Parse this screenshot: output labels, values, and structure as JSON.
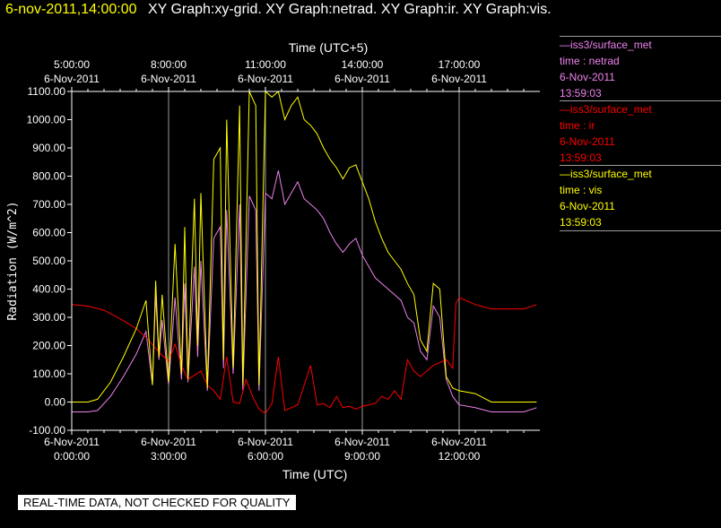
{
  "header": {
    "timestamp": "6-nov-2011,14:00:00",
    "titles": "XY Graph:xy-grid.  XY Graph:netrad.  XY Graph:ir.  XY Graph:vis."
  },
  "legend": [
    {
      "line1": "—iss3/surface_met",
      "line2": "time : netrad",
      "line3": "6-Nov-2011",
      "line4": "13:59:03",
      "color": "#ee82ee"
    },
    {
      "line1": "—iss3/surface_met",
      "line2": "time : ir",
      "line3": "6-Nov-2011",
      "line4": "13:59:03",
      "color": "#ff0000"
    },
    {
      "line1": "—iss3/surface_met",
      "line2": "time : vis",
      "line3": "6-Nov-2011",
      "line4": "13:59:03",
      "color": "#ffff00"
    }
  ],
  "disclaimer": "REAL-TIME DATA, NOT CHECKED FOR QUALITY",
  "chart_data": {
    "type": "line",
    "ylabel": "Radiation (W/m^2)",
    "xlabel": "Time (UTC)",
    "top_axis_label": "Time (UTC+5)",
    "ylim": [
      -100,
      1100
    ],
    "xlim": [
      0,
      14.5
    ],
    "grid": "vertical lines",
    "y_ticks": [
      -100,
      0,
      100,
      200,
      300,
      400,
      500,
      600,
      700,
      800,
      900,
      1000,
      1100
    ],
    "y_tick_labels": [
      "-100.00",
      "0.00",
      "100.00",
      "200.00",
      "300.00",
      "400.00",
      "500.00",
      "600.00",
      "700.00",
      "800.00",
      "900.00",
      "1000.00",
      "1100.00"
    ],
    "x_ticks": [
      0,
      3,
      6,
      9,
      12
    ],
    "x_tick_labels": [
      [
        "6-Nov-2011",
        "0:00:00"
      ],
      [
        "6-Nov-2011",
        "3:00:00"
      ],
      [
        "6-Nov-2011",
        "6:00:00"
      ],
      [
        "6-Nov-2011",
        "9:00:00"
      ],
      [
        "6-Nov-2011",
        "12:00:00"
      ]
    ],
    "top_x_tick_labels": [
      [
        "5:00:00",
        "6-Nov-2011"
      ],
      [
        "8:00:00",
        "6-Nov-2011"
      ],
      [
        "11:00:00",
        "6-Nov-2011"
      ],
      [
        "14:00:00",
        "6-Nov-2011"
      ],
      [
        "17:00:00",
        "6-Nov-2011"
      ]
    ],
    "series": [
      {
        "name": "netrad",
        "color": "#ee82ee",
        "x": [
          0,
          0.5,
          0.8,
          1.2,
          1.6,
          2.0,
          2.3,
          2.5,
          2.6,
          2.7,
          2.8,
          3.0,
          3.2,
          3.4,
          3.5,
          3.6,
          3.8,
          3.9,
          4.0,
          4.2,
          4.4,
          4.6,
          4.7,
          4.8,
          5.0,
          5.2,
          5.3,
          5.5,
          5.7,
          5.8,
          6.0,
          6.2,
          6.4,
          6.6,
          6.8,
          7.0,
          7.2,
          7.4,
          7.6,
          7.8,
          8.0,
          8.2,
          8.4,
          8.6,
          8.8,
          9.0,
          9.2,
          9.4,
          9.6,
          9.8,
          10.0,
          10.2,
          10.4,
          10.6,
          10.8,
          11.0,
          11.2,
          11.4,
          11.6,
          11.8,
          12.0,
          12.5,
          13.0,
          13.5,
          14.0,
          14.4
        ],
        "y": [
          -35,
          -35,
          -30,
          20,
          90,
          170,
          250,
          60,
          380,
          150,
          290,
          60,
          370,
          80,
          420,
          70,
          480,
          160,
          500,
          40,
          580,
          620,
          120,
          680,
          100,
          700,
          40,
          730,
          680,
          40,
          740,
          720,
          820,
          700,
          740,
          780,
          720,
          700,
          680,
          650,
          600,
          560,
          530,
          560,
          580,
          520,
          480,
          440,
          420,
          400,
          380,
          360,
          300,
          280,
          180,
          150,
          340,
          300,
          80,
          20,
          -10,
          -20,
          -35,
          -35,
          -35,
          -20
        ]
      },
      {
        "name": "ir",
        "color": "#ff0000",
        "x": [
          0,
          0.5,
          1.0,
          1.5,
          2.0,
          2.3,
          2.6,
          2.8,
          3.0,
          3.2,
          3.4,
          3.6,
          3.8,
          4.0,
          4.2,
          4.4,
          4.6,
          4.8,
          5.0,
          5.2,
          5.4,
          5.6,
          5.8,
          6.0,
          6.2,
          6.4,
          6.6,
          6.8,
          7.0,
          7.2,
          7.4,
          7.6,
          7.8,
          8.0,
          8.2,
          8.4,
          8.6,
          8.8,
          9.0,
          9.2,
          9.4,
          9.6,
          9.8,
          10.0,
          10.2,
          10.4,
          10.6,
          10.8,
          11.0,
          11.2,
          11.4,
          11.6,
          11.8,
          11.9,
          12.0,
          12.5,
          13.0,
          13.5,
          14.0,
          14.4
        ],
        "y": [
          345,
          340,
          325,
          295,
          260,
          230,
          190,
          165,
          145,
          205,
          130,
          80,
          95,
          110,
          60,
          40,
          10,
          160,
          0,
          -5,
          80,
          20,
          -25,
          -40,
          -5,
          160,
          -30,
          -20,
          -10,
          60,
          130,
          -10,
          -5,
          -20,
          20,
          -20,
          -15,
          -25,
          -15,
          -10,
          -5,
          20,
          10,
          40,
          10,
          150,
          110,
          90,
          110,
          130,
          140,
          150,
          120,
          350,
          370,
          345,
          330,
          330,
          330,
          345
        ]
      },
      {
        "name": "vis",
        "color": "#ffff00",
        "x": [
          0,
          0.5,
          0.8,
          1.2,
          1.6,
          2.0,
          2.3,
          2.5,
          2.6,
          2.7,
          2.8,
          3.0,
          3.2,
          3.4,
          3.5,
          3.6,
          3.8,
          3.9,
          4.0,
          4.2,
          4.4,
          4.6,
          4.7,
          4.8,
          5.0,
          5.2,
          5.3,
          5.5,
          5.7,
          5.8,
          6.0,
          6.2,
          6.4,
          6.6,
          6.8,
          7.0,
          7.2,
          7.4,
          7.6,
          7.8,
          8.0,
          8.2,
          8.4,
          8.6,
          8.8,
          9.0,
          9.2,
          9.4,
          9.6,
          9.8,
          10.0,
          10.2,
          10.4,
          10.6,
          10.8,
          11.0,
          11.2,
          11.4,
          11.6,
          11.8,
          12.0,
          12.5,
          13.0,
          13.5,
          14.0,
          14.4
        ],
        "y": [
          0,
          0,
          10,
          70,
          160,
          260,
          360,
          60,
          430,
          160,
          380,
          70,
          560,
          100,
          620,
          80,
          720,
          200,
          740,
          50,
          860,
          900,
          150,
          1000,
          120,
          1050,
          60,
          1100,
          1050,
          60,
          1100,
          1080,
          1100,
          1000,
          1050,
          1080,
          1000,
          980,
          950,
          900,
          860,
          830,
          790,
          830,
          840,
          780,
          720,
          640,
          580,
          530,
          500,
          470,
          420,
          380,
          220,
          180,
          420,
          400,
          90,
          50,
          40,
          30,
          0,
          0,
          0,
          0
        ]
      }
    ]
  }
}
